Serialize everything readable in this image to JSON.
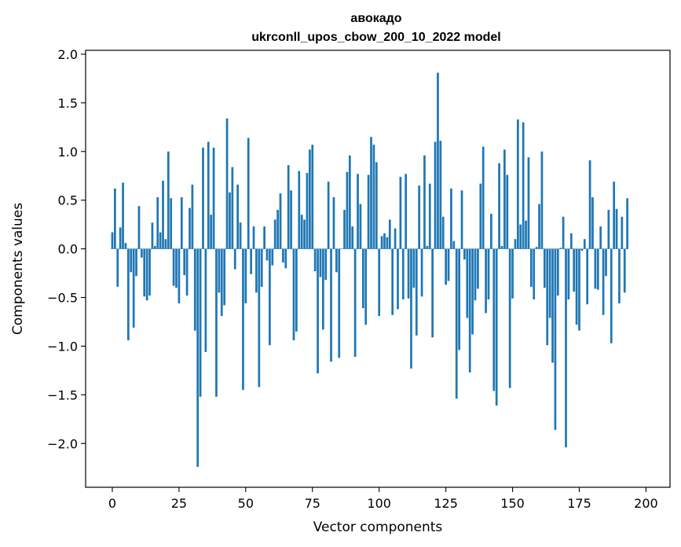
{
  "chart_data": {
    "type": "bar",
    "title": "авокадо",
    "subtitle": "ukrconll_upos_cbow_200_10_2022 model",
    "xlabel": "Vector components",
    "ylabel": "Components values",
    "xlim": [
      -10,
      209
    ],
    "ylim": [
      -2.45,
      2.04
    ],
    "xticks": [
      0,
      25,
      50,
      75,
      100,
      125,
      150,
      175,
      200
    ],
    "yticks": [
      -2.0,
      -1.5,
      -1.0,
      -0.5,
      0.0,
      0.5,
      1.0,
      1.5,
      2.0
    ],
    "xtick_labels": [
      "0",
      "25",
      "50",
      "75",
      "100",
      "125",
      "150",
      "175",
      "200"
    ],
    "ytick_labels": [
      "−2.0",
      "−1.5",
      "−1.0",
      "−0.5",
      "0.0",
      "0.5",
      "1.0",
      "1.5",
      "2.0"
    ],
    "bar_color": "#1f77b4",
    "grid": false,
    "values": [
      0.17,
      0.62,
      -0.39,
      0.22,
      0.68,
      0.06,
      -0.94,
      -0.24,
      -0.81,
      -0.28,
      0.44,
      -0.09,
      -0.49,
      -0.53,
      -0.48,
      0.27,
      0.03,
      0.53,
      0.17,
      0.7,
      0.1,
      1.0,
      0.52,
      -0.38,
      -0.4,
      -0.56,
      0.53,
      -0.27,
      -0.48,
      0.42,
      0.66,
      -0.84,
      -2.24,
      -1.52,
      1.04,
      -1.06,
      1.1,
      0.35,
      1.04,
      -1.52,
      -0.45,
      -0.69,
      -0.58,
      1.34,
      0.58,
      0.84,
      -0.21,
      0.66,
      0.27,
      -1.45,
      -0.56,
      1.14,
      -0.26,
      0.23,
      -0.45,
      -1.42,
      -0.39,
      0.23,
      -0.12,
      -0.99,
      -0.17,
      0.3,
      0.4,
      0.57,
      -0.14,
      -0.2,
      0.86,
      0.6,
      -0.94,
      -0.85,
      0.8,
      0.35,
      0.3,
      0.78,
      1.02,
      1.07,
      -0.23,
      -1.28,
      -0.29,
      -0.83,
      -0.32,
      0.69,
      -1.16,
      0.53,
      -0.24,
      -1.12,
      0.0,
      0.4,
      0.79,
      0.96,
      0.23,
      -1.11,
      0.77,
      0.46,
      -0.61,
      -0.78,
      0.76,
      1.15,
      1.07,
      0.89,
      -0.69,
      0.13,
      0.16,
      0.12,
      0.3,
      -0.68,
      0.21,
      -0.62,
      0.74,
      -0.52,
      0.77,
      -0.51,
      -1.23,
      -0.4,
      -0.89,
      0.65,
      -0.49,
      0.96,
      0.03,
      0.67,
      -0.91,
      1.1,
      1.81,
      1.11,
      0.33,
      -0.37,
      -0.33,
      0.62,
      0.08,
      -1.54,
      -1.04,
      0.6,
      -0.11,
      -0.71,
      -1.27,
      -0.88,
      -0.53,
      -0.41,
      0.67,
      1.05,
      -0.66,
      -0.52,
      0.36,
      -1.46,
      -1.61,
      0.88,
      0.03,
      1.02,
      0.76,
      -1.43,
      -0.51,
      0.1,
      1.33,
      0.25,
      1.3,
      0.29,
      0.94,
      -0.39,
      -0.52,
      0.02,
      0.46,
      1.0,
      -0.4,
      -0.99,
      -0.71,
      -1.17,
      -1.86,
      -0.48,
      0.01,
      0.33,
      -2.04,
      -0.52,
      0.16,
      -0.44,
      -0.78,
      -0.84,
      -0.02,
      0.1,
      -0.57,
      0.91,
      0.53,
      -0.41,
      -0.42,
      0.23,
      -0.68,
      -0.28,
      0.4,
      -0.97,
      0.69,
      0.41,
      -0.56,
      0.33,
      -0.45,
      0.52
    ]
  }
}
